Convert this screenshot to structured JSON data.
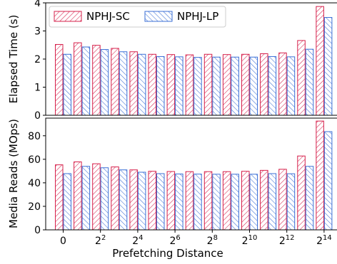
{
  "chart_data": [
    {
      "type": "bar",
      "ylabel": "Elapsed Time (s)",
      "ylim": [
        0,
        4
      ],
      "yticks": [
        0,
        1,
        2,
        3,
        4
      ],
      "grid": false,
      "legend_position": "top-left",
      "series": [
        {
          "name": "NPHJ-SC",
          "color": "#d6204b",
          "values": [
            2.52,
            2.58,
            2.49,
            2.38,
            2.26,
            2.17,
            2.16,
            2.15,
            2.17,
            2.16,
            2.17,
            2.19,
            2.22,
            2.66,
            3.87
          ]
        },
        {
          "name": "NPHJ-LP",
          "color": "#3b6fd6",
          "values": [
            2.17,
            2.43,
            2.34,
            2.26,
            2.17,
            2.09,
            2.08,
            2.06,
            2.07,
            2.07,
            2.07,
            2.09,
            2.08,
            2.35,
            3.48
          ]
        }
      ]
    },
    {
      "type": "bar",
      "ylabel": "Media Reads (MOps)",
      "xlabel": "Prefetching Distance",
      "ylim": [
        0,
        95
      ],
      "yticks": [
        0,
        20,
        40,
        60,
        80
      ],
      "grid": false,
      "series": [
        {
          "name": "NPHJ-SC",
          "color": "#d6204b",
          "values": [
            55.3,
            57.8,
            56.2,
            53.5,
            51.0,
            49.8,
            49.6,
            49.5,
            49.5,
            49.5,
            49.8,
            50.6,
            51.5,
            62.8,
            92.5
          ]
        },
        {
          "name": "NPHJ-LP",
          "color": "#3b6fd6",
          "values": [
            47.8,
            54.0,
            52.8,
            51.0,
            49.0,
            47.8,
            47.5,
            47.4,
            47.3,
            47.3,
            47.3,
            47.8,
            47.7,
            54.0,
            83.5
          ]
        }
      ]
    }
  ],
  "x_ticks": [
    {
      "index": 0,
      "base": "0",
      "exp": ""
    },
    {
      "index": 2,
      "base": "2",
      "exp": "2"
    },
    {
      "index": 4,
      "base": "2",
      "exp": "4"
    },
    {
      "index": 6,
      "base": "2",
      "exp": "6"
    },
    {
      "index": 8,
      "base": "2",
      "exp": "8"
    },
    {
      "index": 10,
      "base": "2",
      "exp": "10"
    },
    {
      "index": 12,
      "base": "2",
      "exp": "12"
    },
    {
      "index": 14,
      "base": "2",
      "exp": "14"
    }
  ]
}
